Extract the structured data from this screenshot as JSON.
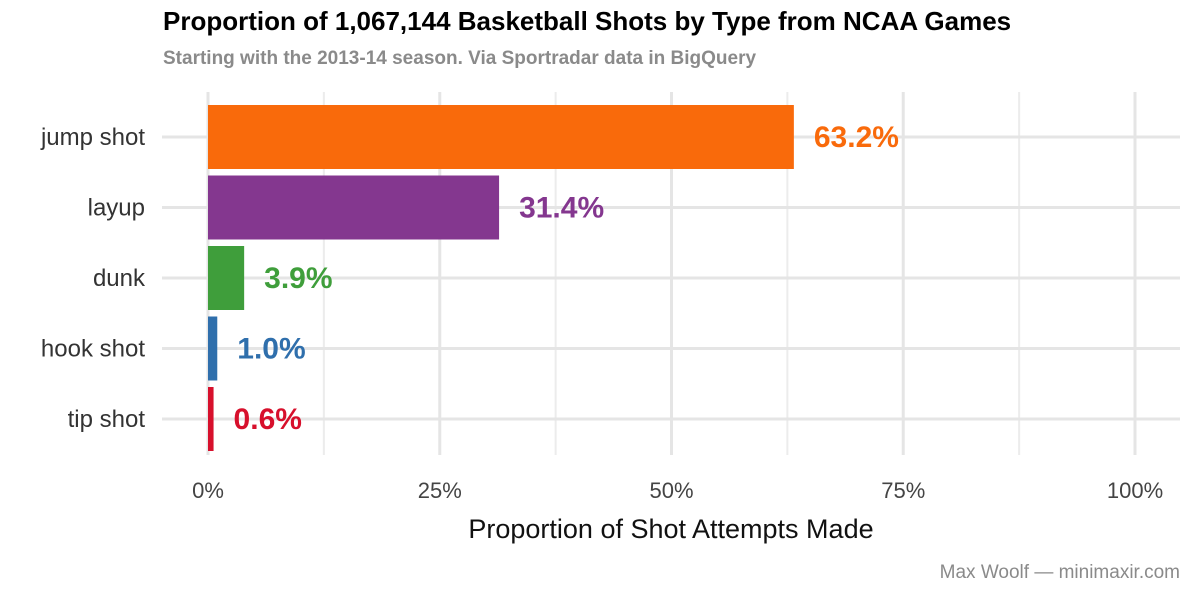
{
  "title": "Proportion of 1,067,144 Basketball Shots by Type from NCAA Games",
  "subtitle": "Starting with the 2013-14 season. Via Sportradar data in BigQuery",
  "caption": "Max Woolf — minimaxir.com",
  "chart_data": {
    "type": "bar",
    "orientation": "horizontal",
    "categories": [
      "jump shot",
      "layup",
      "dunk",
      "hook shot",
      "tip shot"
    ],
    "values": [
      0.632,
      0.314,
      0.039,
      0.01,
      0.006
    ],
    "value_labels": [
      "63.2%",
      "31.4%",
      "3.9%",
      "1.0%",
      "0.6%"
    ],
    "colors": [
      "#f96a0b",
      "#84378f",
      "#3f9e3b",
      "#2f6fac",
      "#d7102c"
    ],
    "xlabel": "Proportion of Shot Attempts Made",
    "ylabel": "",
    "xlim": [
      0,
      1
    ],
    "x_ticks": [
      0,
      0.25,
      0.5,
      0.75,
      1
    ],
    "x_tick_labels": [
      "0%",
      "25%",
      "50%",
      "75%",
      "100%"
    ],
    "grid": true,
    "legend": "none"
  }
}
